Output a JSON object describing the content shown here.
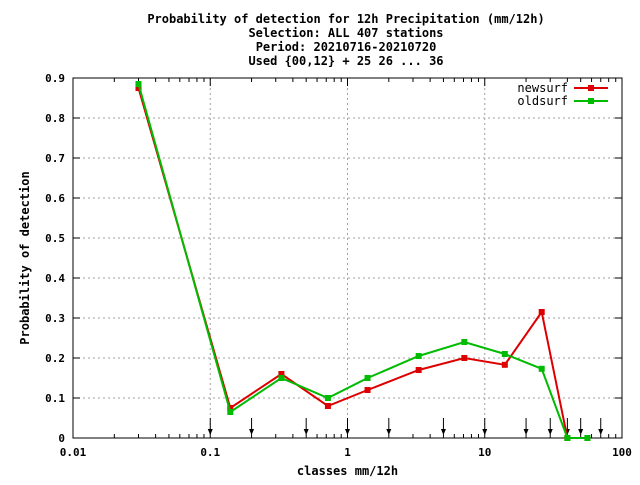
{
  "chart_data": {
    "type": "line",
    "title_lines": [
      "Probability of detection  for 12h Precipitation (mm/12h)",
      "Selection: ALL    407 stations",
      "Period: 20210716-20210720",
      "Used {00,12} + 25 26 ... 36"
    ],
    "xlabel": "classes mm/12h",
    "ylabel": "Probability of detection",
    "x_scale": "log",
    "xlim": [
      0.01,
      100
    ],
    "ylim": [
      0,
      0.9
    ],
    "x_ticks": [
      0.01,
      0.1,
      1,
      10,
      100
    ],
    "x_tick_labels": [
      "0.01",
      "0.1",
      "1",
      "10",
      "100"
    ],
    "y_ticks": [
      0,
      0.1,
      0.2,
      0.3,
      0.4,
      0.5,
      0.6,
      0.7,
      0.8,
      0.9
    ],
    "y_tick_labels": [
      "0",
      "0.1",
      "0.2",
      "0.3",
      "0.4",
      "0.5",
      "0.6",
      "0.7",
      "0.8",
      "0.9"
    ],
    "grid": true,
    "legend_position": "top-right",
    "class_limit_markers": [
      0.1,
      0.2,
      0.5,
      1,
      2,
      5,
      10,
      20,
      30,
      40,
      50,
      70
    ],
    "series": [
      {
        "name": "newsurf",
        "color": "#dd0000",
        "x": [
          0.03,
          0.14,
          0.33,
          0.72,
          1.4,
          3.3,
          7.1,
          14,
          26,
          40,
          56
        ],
        "values": [
          0.875,
          0.075,
          0.16,
          0.08,
          0.12,
          0.17,
          0.2,
          0.183,
          0.315,
          0.0,
          0.0
        ]
      },
      {
        "name": "oldsurf",
        "color": "#00bb00",
        "x": [
          0.03,
          0.14,
          0.33,
          0.72,
          1.4,
          3.3,
          7.1,
          14,
          26,
          40,
          56
        ],
        "values": [
          0.885,
          0.065,
          0.15,
          0.1,
          0.15,
          0.205,
          0.24,
          0.21,
          0.173,
          0.0,
          0.0
        ]
      }
    ]
  }
}
